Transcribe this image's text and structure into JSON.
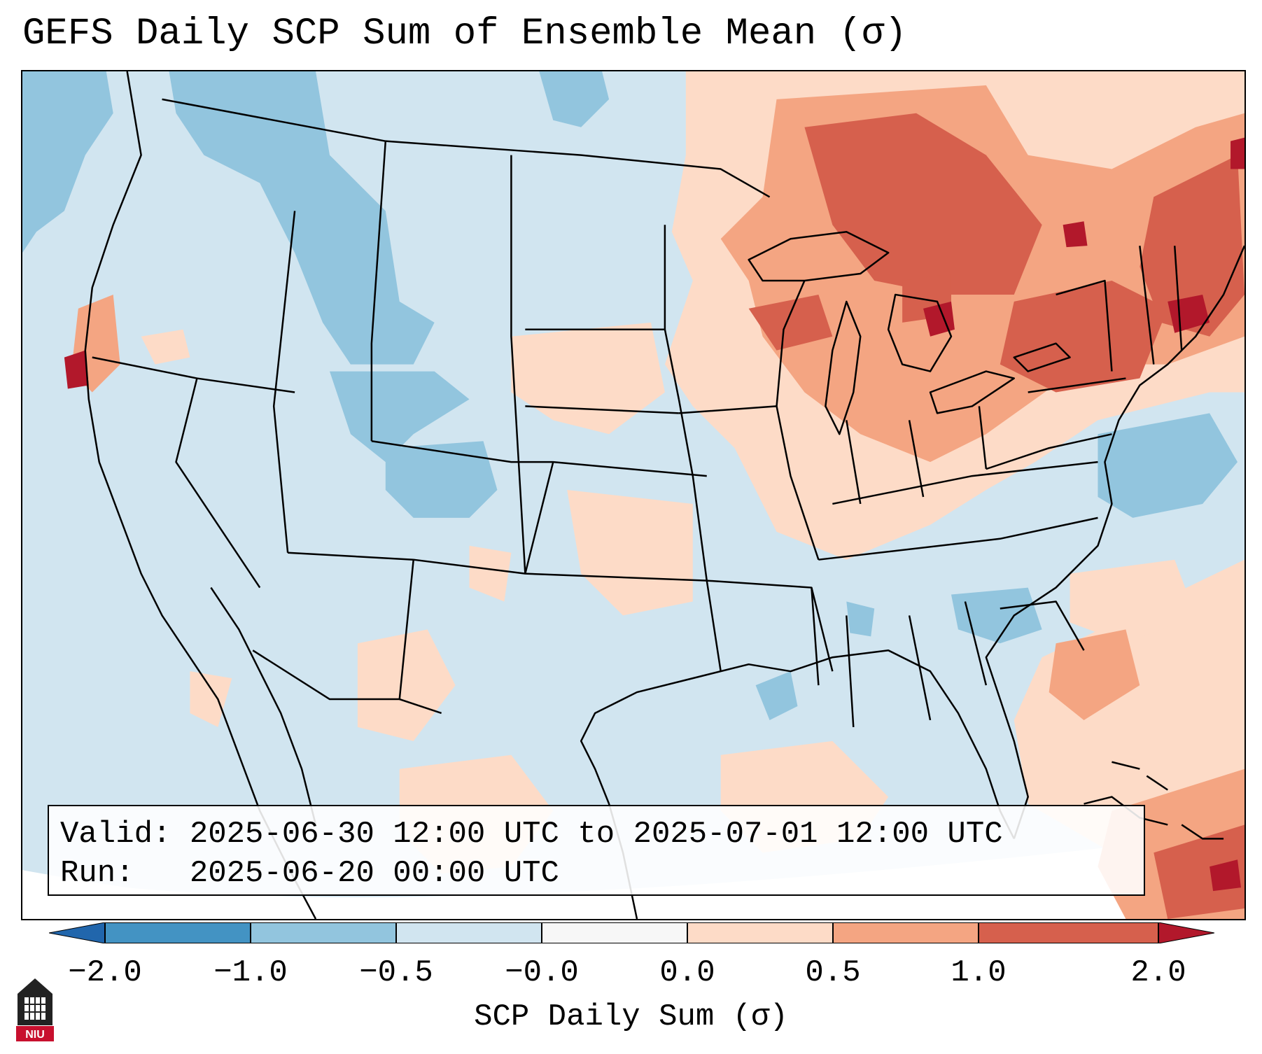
{
  "title": "GEFS Daily SCP Sum of Ensemble Mean (σ)",
  "info": {
    "valid_label": "Valid:",
    "valid_value": "2025-06-30 12:00 UTC to 2025-07-01 12:00 UTC",
    "run_label": "Run:",
    "run_value": "2025-06-20 00:00 UTC"
  },
  "colorbar": {
    "label": "SCP Daily Sum (σ)",
    "ticks": [
      "−2.0",
      "−1.0",
      "−0.5",
      "−0.0",
      "0.0",
      "0.5",
      "1.0",
      "2.0"
    ],
    "colors": [
      "#2166ac",
      "#4393c3",
      "#92c5de",
      "#d1e5f0",
      "#f7f7f7",
      "#fddbc7",
      "#f4a582",
      "#d6604d",
      "#b2182b"
    ]
  },
  "logo": {
    "text": "NIU",
    "color": "#c8102e"
  }
}
